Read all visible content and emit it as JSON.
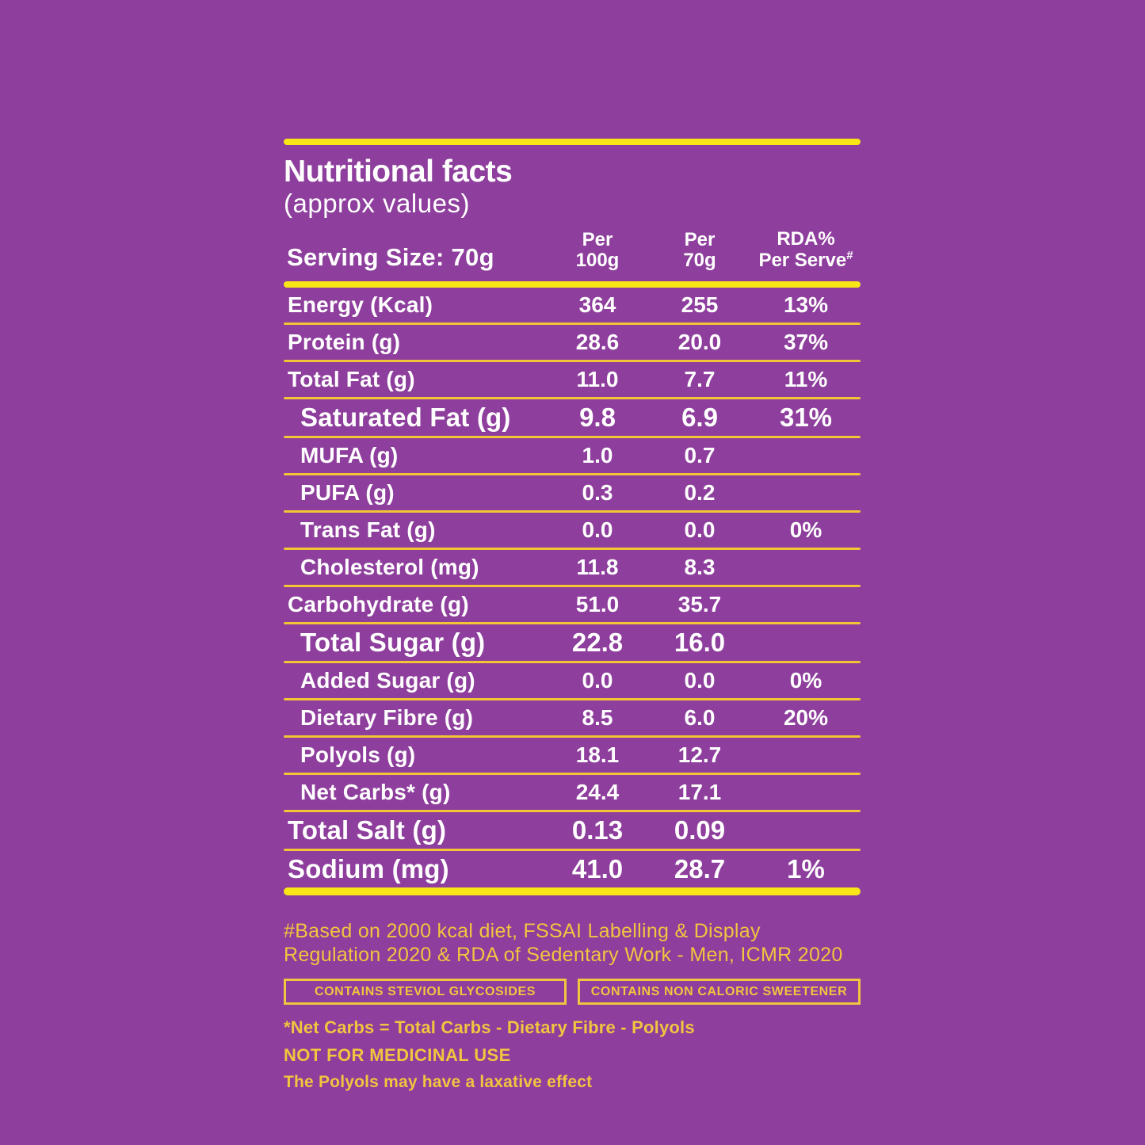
{
  "theme": {
    "background": "#8E3E9C",
    "rule_bright": "#F9E616",
    "rule_soft": "#F2C436",
    "text_white": "#FFFFFF",
    "text_gold": "#F0C540"
  },
  "header": {
    "title": "Nutritional facts",
    "subtitle": "(approx values)",
    "serving_size": "Serving Size: 70g",
    "columns": [
      {
        "line1": "Per",
        "line2": "100g"
      },
      {
        "line1": "Per",
        "line2": "70g"
      },
      {
        "line1": "RDA%",
        "line2": "Per Serve",
        "superscript": "#"
      }
    ]
  },
  "table": {
    "rows": [
      {
        "label": "Energy (Kcal)",
        "per100g": "364",
        "per70g": "255",
        "rda": "13%",
        "emphasis": false,
        "indent": 0
      },
      {
        "label": "Protein (g)",
        "per100g": "28.6",
        "per70g": "20.0",
        "rda": "37%",
        "emphasis": false,
        "indent": 0
      },
      {
        "label": "Total Fat (g)",
        "per100g": "11.0",
        "per70g": "7.7",
        "rda": "11%",
        "emphasis": false,
        "indent": 0
      },
      {
        "label": "Saturated Fat (g)",
        "per100g": "9.8",
        "per70g": "6.9",
        "rda": "31%",
        "emphasis": true,
        "indent": 1
      },
      {
        "label": "MUFA (g)",
        "per100g": "1.0",
        "per70g": "0.7",
        "rda": "",
        "emphasis": false,
        "indent": 1
      },
      {
        "label": "PUFA (g)",
        "per100g": "0.3",
        "per70g": "0.2",
        "rda": "",
        "emphasis": false,
        "indent": 1
      },
      {
        "label": "Trans Fat (g)",
        "per100g": "0.0",
        "per70g": "0.0",
        "rda": "0%",
        "emphasis": false,
        "indent": 1
      },
      {
        "label": "Cholesterol (mg)",
        "per100g": "11.8",
        "per70g": "8.3",
        "rda": "",
        "emphasis": false,
        "indent": 1
      },
      {
        "label": "Carbohydrate (g)",
        "per100g": "51.0",
        "per70g": "35.7",
        "rda": "",
        "emphasis": false,
        "indent": 0
      },
      {
        "label": "Total Sugar (g)",
        "per100g": "22.8",
        "per70g": "16.0",
        "rda": "",
        "emphasis": true,
        "indent": 1
      },
      {
        "label": "Added Sugar (g)",
        "per100g": "0.0",
        "per70g": "0.0",
        "rda": "0%",
        "emphasis": false,
        "indent": 1
      },
      {
        "label": "Dietary Fibre (g)",
        "per100g": "8.5",
        "per70g": "6.0",
        "rda": "20%",
        "emphasis": false,
        "indent": 1
      },
      {
        "label": "Polyols (g)",
        "per100g": "18.1",
        "per70g": "12.7",
        "rda": "",
        "emphasis": false,
        "indent": 1
      },
      {
        "label": "Net Carbs* (g)",
        "per100g": "24.4",
        "per70g": "17.1",
        "rda": "",
        "emphasis": false,
        "indent": 1
      },
      {
        "label": "Total Salt (g)",
        "per100g": "0.13",
        "per70g": "0.09",
        "rda": "",
        "emphasis": true,
        "indent": 0
      },
      {
        "label": "Sodium (mg)",
        "per100g": "41.0",
        "per70g": "28.7",
        "rda": "1%",
        "emphasis": true,
        "indent": 0
      }
    ]
  },
  "footer": {
    "rda_basis": "#Based on 2000 kcal diet, FSSAI Labelling & Display Regulation 2020 & RDA of Sedentary Work - Men, ICMR 2020",
    "badges": [
      "CONTAINS STEVIOL GLYCOSIDES",
      "CONTAINS NON CALORIC SWEETENER"
    ],
    "net_carbs_note": "*Net Carbs = Total Carbs - Dietary Fibre - Polyols",
    "medicinal_note": "NOT FOR MEDICINAL USE",
    "laxative_note": "The Polyols may have a laxative effect"
  }
}
